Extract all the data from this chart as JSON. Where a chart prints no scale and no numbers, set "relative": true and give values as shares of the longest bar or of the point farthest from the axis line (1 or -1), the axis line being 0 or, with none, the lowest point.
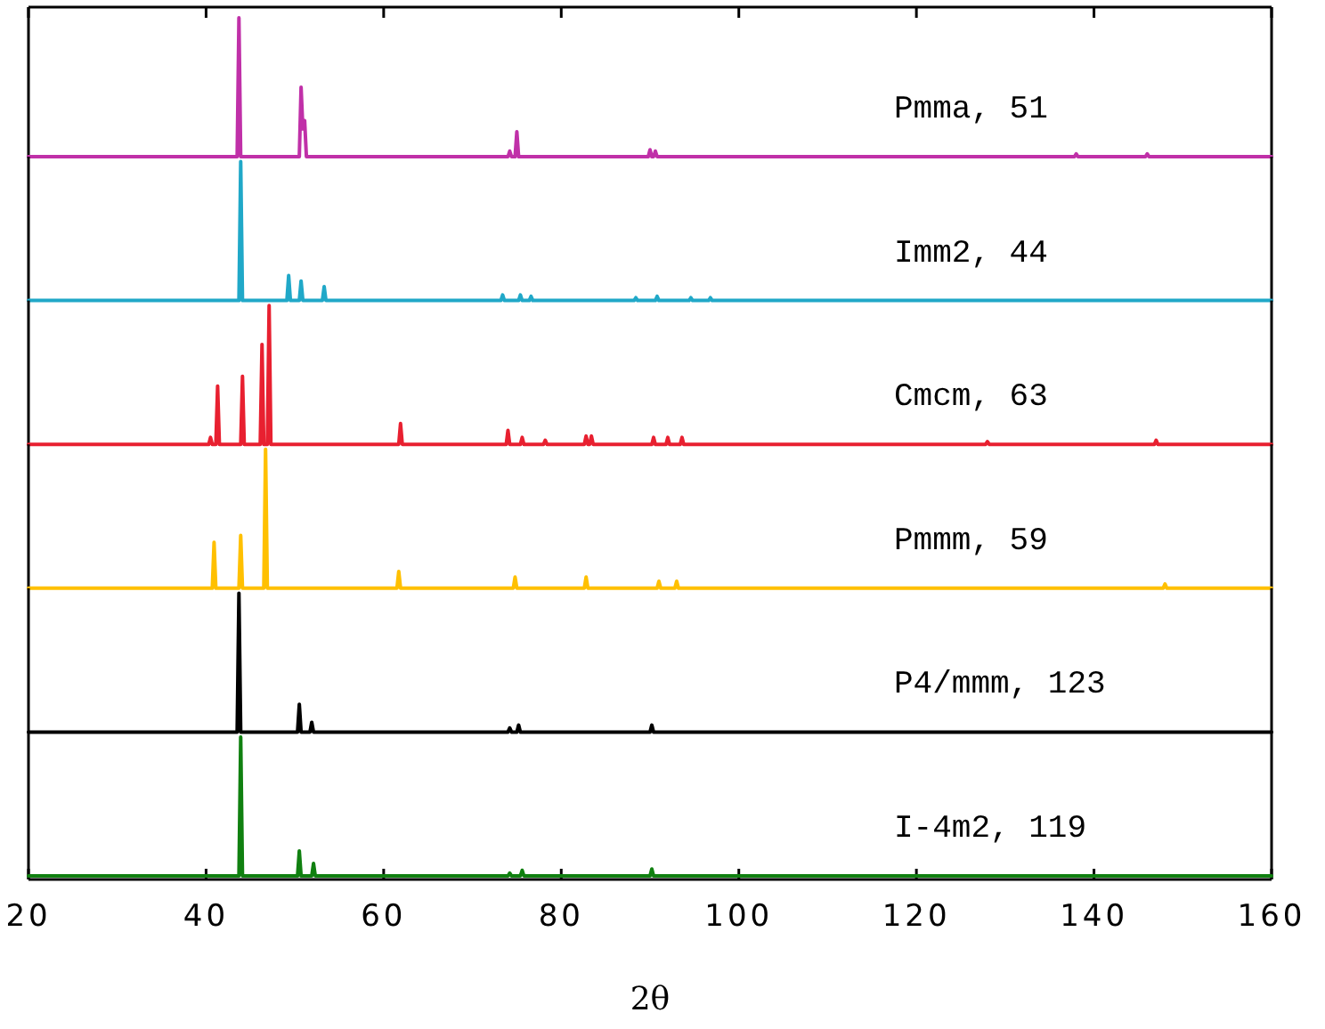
{
  "chart_data": [
    {
      "type": "line",
      "relative": true,
      "xlim": [
        20,
        160
      ],
      "xticks": [
        20,
        40,
        60,
        80,
        100,
        120,
        140,
        160
      ],
      "tick_labels": false,
      "legend": false,
      "x": [
        20,
        43.5,
        43.7,
        43.9,
        50.5,
        50.7,
        50.9,
        51.1,
        51.3,
        74.0,
        74.2,
        74.4,
        74.8,
        75.0,
        75.2,
        89.8,
        90.0,
        90.2,
        90.4,
        90.6,
        90.8,
        137.8,
        138,
        138.2,
        145.8,
        146,
        146.2,
        160
      ],
      "series": [
        {
          "name": "Pmma, 51",
          "color": "#c030a8",
          "values": [
            0,
            0,
            1,
            0,
            0,
            0.5,
            0.2,
            0.26,
            0,
            0,
            0.04,
            0,
            0,
            0.18,
            0,
            0,
            0.05,
            0,
            0,
            0.04,
            0,
            0,
            0.02,
            0,
            0,
            0.02,
            0,
            0
          ]
        }
      ]
    },
    {
      "type": "line",
      "relative": true,
      "xlim": [
        20,
        160
      ],
      "tick_labels": false,
      "legend": false,
      "x": [
        20,
        43.7,
        43.9,
        44.1,
        49.1,
        49.3,
        49.5,
        50.5,
        50.7,
        50.9,
        53.1,
        53.3,
        53.5,
        73.2,
        73.4,
        73.6,
        75.2,
        75.4,
        75.6,
        76.4,
        76.6,
        76.8,
        88.2,
        88.4,
        88.6,
        90.6,
        90.8,
        91.0,
        94.4,
        94.6,
        94.8,
        96.6,
        96.8,
        97.0,
        160
      ],
      "series": [
        {
          "name": "Imm2, 44",
          "color": "#20a8c8",
          "values": [
            0,
            0,
            1,
            0,
            0,
            0.18,
            0,
            0,
            0.14,
            0,
            0,
            0.1,
            0,
            0,
            0.04,
            0,
            0,
            0.04,
            0,
            0,
            0.03,
            0,
            0,
            0.02,
            0,
            0,
            0.03,
            0,
            0,
            0.02,
            0,
            0,
            0.02,
            0,
            0
          ]
        }
      ]
    },
    {
      "type": "line",
      "relative": true,
      "xlim": [
        20,
        160
      ],
      "tick_labels": false,
      "legend": false,
      "x": [
        20,
        40.3,
        40.5,
        40.7,
        41.1,
        41.3,
        41.5,
        43.9,
        44.1,
        44.3,
        46.1,
        46.3,
        46.5,
        46.9,
        47.1,
        47.3,
        61.7,
        61.9,
        62.1,
        73.8,
        74.0,
        74.2,
        75.4,
        75.6,
        75.8,
        78.0,
        78.2,
        78.4,
        82.6,
        82.8,
        83.0,
        83.2,
        83.4,
        83.6,
        90.2,
        90.4,
        90.6,
        91.8,
        92.0,
        92.2,
        93.4,
        93.6,
        93.8,
        127.8,
        128,
        128.2,
        146.8,
        147,
        147.2,
        160
      ],
      "series": [
        {
          "name": "Cmcm, 63",
          "color": "#e82030",
          "values": [
            0,
            0,
            0.05,
            0,
            0,
            0.42,
            0,
            0,
            0.49,
            0,
            0,
            0.72,
            0,
            0,
            1,
            0,
            0,
            0.15,
            0,
            0,
            0.1,
            0,
            0,
            0.05,
            0,
            0,
            0.03,
            0,
            0,
            0.06,
            0,
            0,
            0.06,
            0,
            0,
            0.05,
            0,
            0,
            0.05,
            0,
            0,
            0.05,
            0,
            0,
            0.02,
            0,
            0,
            0.03,
            0,
            0
          ]
        }
      ]
    },
    {
      "type": "line",
      "relative": true,
      "xlim": [
        20,
        160
      ],
      "tick_labels": false,
      "legend": false,
      "x": [
        20,
        40.7,
        40.9,
        41.1,
        43.7,
        43.9,
        44.1,
        46.5,
        46.7,
        46.9,
        61.5,
        61.7,
        61.9,
        74.6,
        74.8,
        75.0,
        82.6,
        82.8,
        83.0,
        90.8,
        91.0,
        91.2,
        92.8,
        93.0,
        93.2,
        147.8,
        148,
        148.2,
        160
      ],
      "series": [
        {
          "name": "Pmmm, 59",
          "color": "#ffc000",
          "values": [
            0,
            0,
            0.33,
            0,
            0,
            0.38,
            0,
            0,
            1,
            0,
            0,
            0.12,
            0,
            0,
            0.08,
            0,
            0,
            0.08,
            0,
            0,
            0.05,
            0,
            0,
            0.05,
            0,
            0,
            0.03,
            0,
            0
          ]
        }
      ]
    },
    {
      "type": "line",
      "relative": true,
      "xlim": [
        20,
        160
      ],
      "tick_labels": false,
      "legend": false,
      "x": [
        20,
        43.5,
        43.7,
        43.9,
        50.3,
        50.5,
        50.7,
        51.7,
        51.9,
        52.1,
        74.0,
        74.2,
        74.4,
        75.0,
        75.2,
        75.4,
        90.0,
        90.2,
        90.4,
        160
      ],
      "series": [
        {
          "name": "P4/mmm, 123",
          "color": "#000000",
          "values": [
            0,
            0,
            1,
            0,
            0,
            0.2,
            0,
            0,
            0.07,
            0,
            0,
            0.03,
            0,
            0,
            0.05,
            0,
            0,
            0.05,
            0,
            0
          ]
        }
      ]
    },
    {
      "type": "line",
      "relative": true,
      "xlim": [
        20,
        160
      ],
      "xticks": [
        20,
        40,
        60,
        80,
        100,
        120,
        140,
        160
      ],
      "tick_labels": "x",
      "xlabel": "2θ",
      "legend": false,
      "x": [
        20,
        43.7,
        43.9,
        44.1,
        50.3,
        50.5,
        50.7,
        51.9,
        52.1,
        52.3,
        74.0,
        74.2,
        74.4,
        75.4,
        75.6,
        75.8,
        90.0,
        90.2,
        90.4,
        160
      ],
      "series": [
        {
          "name": "I-4m2, 119",
          "color": "#108010",
          "values": [
            0,
            0,
            1,
            0,
            0,
            0.18,
            0,
            0,
            0.09,
            0,
            0,
            0.02,
            0,
            0,
            0.04,
            0,
            0,
            0.05,
            0,
            0
          ]
        }
      ]
    }
  ]
}
